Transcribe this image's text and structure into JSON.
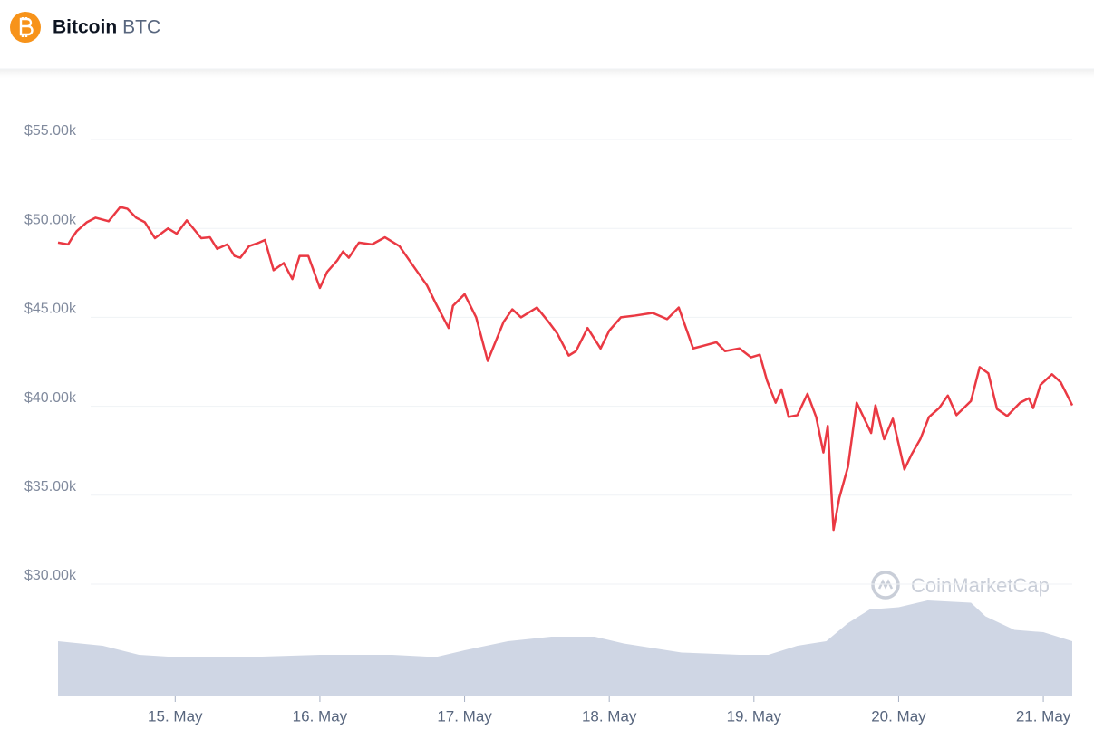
{
  "header": {
    "name": "Bitcoin",
    "symbol": "BTC"
  },
  "chart_data": {
    "type": "line",
    "watermark": "CoinMarketCap",
    "x": [
      14.19,
      14.26,
      14.29,
      14.32,
      14.39,
      14.45,
      14.54,
      14.62,
      14.67,
      14.73,
      14.79,
      14.86,
      14.95,
      15.01,
      15.08,
      15.14,
      15.18,
      15.24,
      15.29,
      15.36,
      15.41,
      15.45,
      15.51,
      15.58,
      15.62,
      15.68,
      15.75,
      15.81,
      15.86,
      15.92,
      16.0,
      16.05,
      16.12,
      16.16,
      16.2,
      16.27,
      16.36,
      16.45,
      16.55,
      16.64,
      16.74,
      16.8,
      16.89,
      16.92,
      17.0,
      17.08,
      17.16,
      17.22,
      17.27,
      17.33,
      17.39,
      17.5,
      17.58,
      17.64,
      17.72,
      17.77,
      17.85,
      17.94,
      18.0,
      18.08,
      18.18,
      18.3,
      18.4,
      18.48,
      18.58,
      18.65,
      18.74,
      18.8,
      18.9,
      18.98,
      19.04,
      19.09,
      19.15,
      19.19,
      19.24,
      19.3,
      19.37,
      19.43,
      19.48,
      19.51,
      19.55,
      19.59,
      19.65,
      19.71,
      19.81,
      19.84,
      19.9,
      19.96,
      20.04,
      20.09,
      20.15,
      20.21,
      20.28,
      20.34,
      20.4,
      20.5,
      20.56,
      20.62,
      20.68,
      20.75,
      20.84,
      20.9,
      20.93,
      20.98,
      21.06,
      21.12,
      21.2
    ],
    "xlim": [
      14.19,
      21.2
    ],
    "xticks": [
      {
        "value": 15,
        "label": "15. May"
      },
      {
        "value": 16,
        "label": "16. May"
      },
      {
        "value": 17,
        "label": "17. May"
      },
      {
        "value": 18,
        "label": "18. May"
      },
      {
        "value": 19,
        "label": "19. May"
      },
      {
        "value": 20,
        "label": "20. May"
      },
      {
        "value": 21,
        "label": "21. May"
      }
    ],
    "ylim": [
      30000,
      55000
    ],
    "yticks": [
      {
        "value": 30000,
        "label": "$30.00k"
      },
      {
        "value": 35000,
        "label": "$35.00k"
      },
      {
        "value": 40000,
        "label": "$40.00k"
      },
      {
        "value": 45000,
        "label": "$45.00k"
      },
      {
        "value": 50000,
        "label": "$50.00k"
      },
      {
        "value": 55000,
        "label": "$55.00k"
      }
    ],
    "grid": true,
    "y2lim": [
      0,
      100
    ],
    "series": [
      {
        "color": "#ea3943",
        "values": [
          49200,
          49100,
          49500,
          49850,
          50350,
          50600,
          50400,
          51200,
          51100,
          50600,
          50350,
          49450,
          50000,
          49700,
          50450,
          49850,
          49450,
          49500,
          48850,
          49100,
          48450,
          48350,
          49000,
          49200,
          49350,
          47650,
          48050,
          47150,
          48450,
          48450,
          46650,
          47550,
          48200,
          48700,
          48350,
          49200,
          49100,
          49500,
          49000,
          47950,
          46800,
          45800,
          44400,
          45650,
          46300,
          45000,
          42550,
          43750,
          44750,
          45450,
          45000,
          45550,
          44750,
          44100,
          42850,
          43100,
          44400,
          43250,
          44250,
          45000,
          45100,
          45250,
          44900,
          45550,
          43250,
          43400,
          43600,
          43100,
          43250,
          42750,
          42900,
          41450,
          40200,
          40950,
          39400,
          39500,
          40700,
          39400,
          37400,
          38900,
          33050,
          34850,
          36600,
          40200,
          38500,
          40050,
          38150,
          39300,
          36450,
          37300,
          38150,
          39400,
          39900,
          40600,
          39500,
          40300,
          42200,
          41850,
          39850,
          39450,
          40200,
          40450,
          39900,
          41200,
          41800,
          41350,
          40050
        ]
      },
      {
        "type": "area",
        "axis": "y2",
        "color": "#cfd6e4",
        "x": [
          14.19,
          14.5,
          14.75,
          15.0,
          15.5,
          16.0,
          16.5,
          16.8,
          17.0,
          17.3,
          17.6,
          17.9,
          18.1,
          18.5,
          18.9,
          19.1,
          19.3,
          19.5,
          19.65,
          19.8,
          20.0,
          20.2,
          20.5,
          20.6,
          20.8,
          21.0,
          21.2
        ],
        "values": [
          24,
          22,
          18,
          17,
          17,
          18,
          18,
          17,
          20,
          24,
          26,
          26,
          23,
          19,
          18,
          18,
          22,
          24,
          32,
          38,
          39,
          42,
          41,
          35,
          29,
          28,
          24
        ]
      }
    ]
  }
}
